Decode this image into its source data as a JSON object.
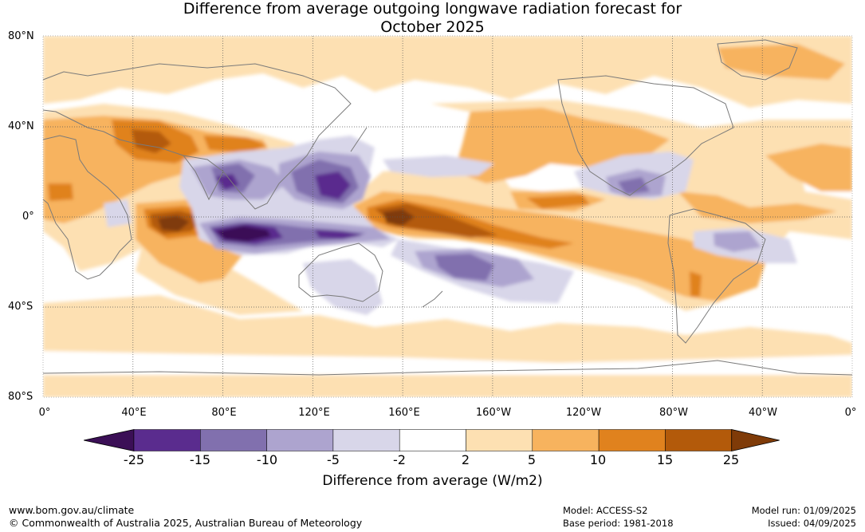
{
  "title_line1": "Difference from average outgoing longwave radiation forecast for",
  "title_line2": "October 2025",
  "lat_labels": [
    "80°N",
    "40°N",
    "0°",
    "40°S",
    "80°S"
  ],
  "lon_labels": [
    "0°",
    "40°E",
    "80°E",
    "120°E",
    "160°E",
    "160°W",
    "120°W",
    "80°W",
    "40°W",
    "0°"
  ],
  "legend": {
    "title": "Difference from average (W/m2)",
    "ticks": [
      "-25",
      "-15",
      "-10",
      "-5",
      "-2",
      "2",
      "5",
      "10",
      "15",
      "25"
    ],
    "colors": [
      "#3b0f56",
      "#5a2c8e",
      "#8170ae",
      "#ada4cf",
      "#d8d6e9",
      "#ffffff",
      "#fde0b2",
      "#f7b35e",
      "#e0821e",
      "#b35a0a",
      "#7f3b08"
    ]
  },
  "footer": {
    "site": "www.bom.gov.au/climate",
    "copyright": "© Commonwealth of Australia 2025, Australian Bureau of Meteorology",
    "model": "Model: ACCESS-S2",
    "base_period": "Base period: 1981-2018",
    "model_run": "Model run: 01/09/2025",
    "issued": "Issued: 04/09/2025"
  }
}
